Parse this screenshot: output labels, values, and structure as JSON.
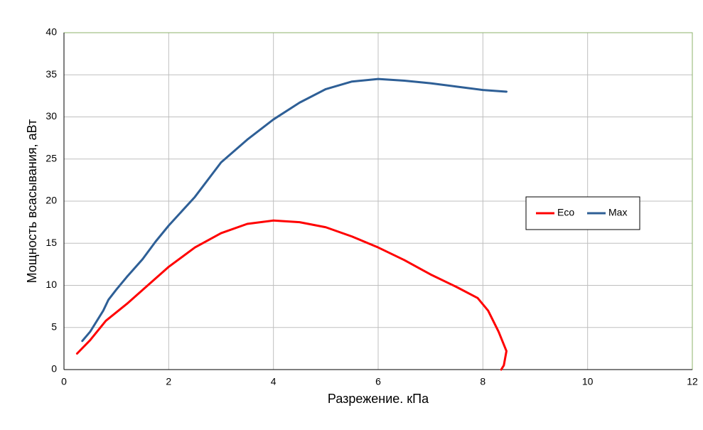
{
  "chart_data": {
    "type": "line",
    "x_label": "Разрежение. кПа",
    "y_label": "Мощность всасывания, аВт",
    "xlim": [
      0,
      12
    ],
    "xticks": [
      0,
      2,
      4,
      6,
      8,
      10,
      12
    ],
    "ylim": [
      0,
      40
    ],
    "yticks": [
      0,
      5,
      10,
      15,
      20,
      25,
      30,
      35,
      40
    ],
    "grid": true,
    "legend": "right",
    "series": [
      {
        "name": "Eco",
        "color": "#ff0000",
        "x": [
          0.25,
          0.5,
          0.8,
          1.2,
          1.6,
          2,
          2.5,
          3,
          3.5,
          4,
          4.5,
          5,
          5.5,
          6,
          6.5,
          7,
          7.5,
          7.9,
          8.1,
          8.3,
          8.45,
          8.4,
          8.35
        ],
        "values": [
          1.9,
          3.5,
          5.8,
          7.8,
          10,
          12.2,
          14.5,
          16.2,
          17.3,
          17.7,
          17.5,
          16.9,
          15.8,
          14.5,
          13,
          11.3,
          9.8,
          8.5,
          7,
          4.5,
          2.2,
          0.5,
          0
        ]
      },
      {
        "name": "Max",
        "color": "#2e5f96",
        "x": [
          0.35,
          0.5,
          0.75,
          0.85,
          1,
          1.2,
          1.5,
          1.75,
          2,
          2.5,
          3,
          3.5,
          4,
          4.5,
          5,
          5.5,
          6,
          6.5,
          7,
          7.5,
          8,
          8.45
        ],
        "values": [
          3.4,
          4.5,
          7,
          8.3,
          9.5,
          11,
          13.1,
          15.2,
          17.1,
          20.5,
          24.6,
          27.3,
          29.7,
          31.7,
          33.3,
          34.2,
          34.5,
          34.3,
          34,
          33.6,
          33.2,
          33
        ]
      }
    ]
  }
}
